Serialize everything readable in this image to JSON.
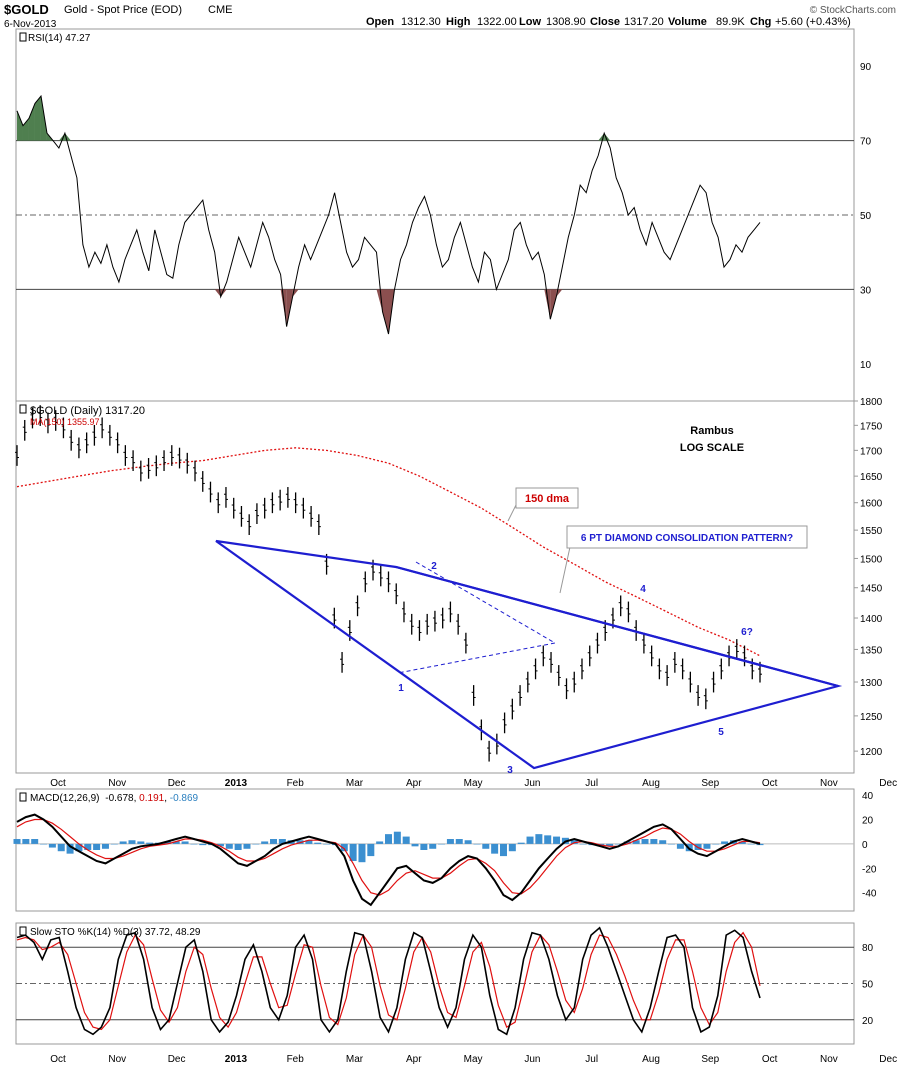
{
  "header": {
    "symbol": "$GOLD",
    "description": "Gold - Spot Price (EOD)",
    "exchange": "CME",
    "date": "6-Nov-2013",
    "open_label": "Open",
    "open": "1312.30",
    "high_label": "High",
    "high": "1322.00",
    "low_label": "Low",
    "low": "1308.90",
    "close_label": "Close",
    "close": "1317.20",
    "volume_label": "Volume",
    "volume": "89.9K",
    "chg_label": "Chg",
    "chg": "+5.60 (+0.43%)",
    "watermark": "© StockCharts.com"
  },
  "chart_data": [
    {
      "type": "line",
      "panel": "rsi",
      "legend": "RSI(14) 47.27",
      "ylim": [
        0,
        100
      ],
      "ytick_labels": [
        "90",
        "70",
        "50",
        "30",
        "10"
      ],
      "yticks": [
        90,
        70,
        50,
        30,
        10
      ],
      "overbought": 70,
      "midline": 50,
      "oversold": 30,
      "series": [
        {
          "name": "RSI(14)",
          "values": [
            78,
            74,
            76,
            80,
            82,
            72,
            70,
            68,
            72,
            66,
            60,
            42,
            36,
            40,
            37,
            42,
            36,
            32,
            38,
            42,
            46,
            40,
            35,
            46,
            40,
            34,
            33,
            42,
            48,
            50,
            52,
            54,
            46,
            40,
            28,
            32,
            38,
            44,
            40,
            36,
            42,
            48,
            44,
            38,
            34,
            20,
            28,
            36,
            42,
            38,
            42,
            46,
            50,
            56,
            48,
            40,
            36,
            38,
            44,
            42,
            40,
            24,
            18,
            30,
            38,
            42,
            48,
            52,
            55,
            50,
            42,
            36,
            38,
            44,
            48,
            42,
            36,
            32,
            40,
            38,
            30,
            34,
            38,
            46,
            48,
            42,
            38,
            40,
            34,
            22,
            28,
            36,
            44,
            50,
            58,
            56,
            62,
            66,
            72,
            68,
            60,
            56,
            50,
            52,
            46,
            42,
            48,
            44,
            40,
            38,
            42,
            46,
            50,
            54,
            58,
            56,
            48,
            44,
            36,
            38,
            42,
            40,
            44,
            46,
            48
          ]
        }
      ]
    },
    {
      "type": "line",
      "panel": "price",
      "legend": "$GOLD (Daily) 1317.20",
      "ma_legend": "MA(150) 1355.97",
      "scale": "log",
      "ylim": [
        1170,
        1800
      ],
      "ytick_labels": [
        "1800",
        "1750",
        "1700",
        "1650",
        "1600",
        "1550",
        "1500",
        "1450",
        "1400",
        "1350",
        "1300",
        "1250",
        "1200"
      ],
      "yticks": [
        1800,
        1750,
        1700,
        1650,
        1600,
        1550,
        1500,
        1450,
        1400,
        1350,
        1300,
        1250,
        1200
      ],
      "xtick_labels": [
        "Oct",
        "Nov",
        "Dec",
        "2013",
        "Feb",
        "Mar",
        "Apr",
        "May",
        "Jun",
        "Jul",
        "Aug",
        "Sep",
        "Oct",
        "Nov",
        "Dec"
      ],
      "series": [
        {
          "name": "$GOLD (Daily)",
          "values": [
            1690,
            1740,
            1765,
            1770,
            1755,
            1760,
            1745,
            1720,
            1705,
            1715,
            1730,
            1745,
            1730,
            1715,
            1690,
            1680,
            1660,
            1665,
            1670,
            1680,
            1690,
            1685,
            1675,
            1660,
            1640,
            1620,
            1600,
            1610,
            1590,
            1575,
            1560,
            1580,
            1590,
            1600,
            1605,
            1610,
            1600,
            1590,
            1575,
            1560,
            1490,
            1400,
            1330,
            1380,
            1420,
            1460,
            1480,
            1470,
            1460,
            1440,
            1410,
            1390,
            1380,
            1390,
            1395,
            1400,
            1410,
            1390,
            1360,
            1280,
            1230,
            1200,
            1210,
            1240,
            1260,
            1280,
            1300,
            1320,
            1340,
            1330,
            1310,
            1290,
            1300,
            1320,
            1340,
            1360,
            1380,
            1400,
            1420,
            1410,
            1380,
            1360,
            1340,
            1320,
            1310,
            1330,
            1320,
            1300,
            1280,
            1275,
            1300,
            1320,
            1340,
            1350,
            1340,
            1320,
            1315
          ]
        },
        {
          "name": "MA(150)",
          "values": [
            1630,
            1640,
            1650,
            1660,
            1668,
            1675,
            1680,
            1690,
            1700,
            1705,
            1700,
            1690,
            1675,
            1650,
            1620,
            1590,
            1555,
            1520,
            1490,
            1460,
            1435,
            1410,
            1385,
            1365,
            1340
          ]
        }
      ],
      "text_annotations": [
        "Rambus",
        "LOG SCALE",
        "150 dma",
        "6 PT DIAMOND CONSOLIDATION PATTERN?",
        "1",
        "2",
        "3",
        "4",
        "5",
        "6?"
      ]
    },
    {
      "type": "line",
      "panel": "macd",
      "legend_label": "MACD(12,26,9)",
      "legend_values": [
        "-0.678",
        "0.191",
        "-0.869"
      ],
      "ylim": [
        -55,
        45
      ],
      "ytick_labels": [
        "40",
        "20",
        "0",
        "-20",
        "-40"
      ],
      "yticks": [
        40,
        20,
        0,
        -20,
        -40
      ],
      "series": [
        {
          "name": "MACD",
          "values": [
            18,
            22,
            24,
            20,
            14,
            6,
            -2,
            -6,
            -10,
            -14,
            -16,
            -12,
            -8,
            -4,
            -2,
            -1,
            0,
            2,
            4,
            6,
            4,
            2,
            0,
            -4,
            -10,
            -16,
            -18,
            -14,
            -10,
            -4,
            0,
            2,
            4,
            6,
            4,
            2,
            0,
            -10,
            -30,
            -45,
            -50,
            -40,
            -30,
            -20,
            -18,
            -24,
            -30,
            -32,
            -28,
            -20,
            -14,
            -10,
            -12,
            -20,
            -30,
            -42,
            -46,
            -40,
            -30,
            -20,
            -12,
            -4,
            2,
            4,
            2,
            0,
            -2,
            -4,
            -2,
            2,
            6,
            10,
            14,
            16,
            12,
            4,
            -4,
            -8,
            -10,
            -6,
            -2,
            2,
            4,
            2,
            0
          ]
        },
        {
          "name": "Signal",
          "values": [
            14,
            18,
            20,
            20,
            17,
            12,
            6,
            0,
            -5,
            -9,
            -12,
            -12,
            -10,
            -7,
            -4,
            -2,
            -1,
            0,
            2,
            4,
            4,
            3,
            1,
            -2,
            -6,
            -11,
            -14,
            -14,
            -12,
            -8,
            -4,
            -1,
            1,
            3,
            3,
            2,
            1,
            -4,
            -16,
            -30,
            -40,
            -42,
            -38,
            -30,
            -24,
            -22,
            -25,
            -28,
            -28,
            -24,
            -18,
            -13,
            -12,
            -16,
            -22,
            -32,
            -40,
            -41,
            -36,
            -28,
            -19,
            -10,
            -3,
            1,
            2,
            1,
            -1,
            -2,
            -2,
            0,
            3,
            6,
            10,
            13,
            12,
            8,
            2,
            -3,
            -6,
            -6,
            -4,
            -1,
            2,
            2,
            1
          ]
        },
        {
          "name": "Histogram",
          "values": [
            4,
            4,
            4,
            0,
            -3,
            -6,
            -8,
            -6,
            -5,
            -5,
            -4,
            0,
            2,
            3,
            2,
            1,
            1,
            2,
            2,
            2,
            0,
            -1,
            -1,
            -2,
            -4,
            -5,
            -4,
            0,
            2,
            4,
            4,
            3,
            3,
            3,
            1,
            0,
            -1,
            -6,
            -14,
            -15,
            -10,
            2,
            8,
            10,
            6,
            -2,
            -5,
            -4,
            0,
            4,
            4,
            3,
            0,
            -4,
            -8,
            -10,
            -6,
            1,
            6,
            8,
            7,
            6,
            5,
            3,
            0,
            -1,
            -1,
            -2,
            0,
            2,
            3,
            4,
            4,
            3,
            0,
            -4,
            -6,
            -5,
            -4,
            0,
            2,
            3,
            2,
            0,
            -1
          ]
        }
      ]
    },
    {
      "type": "line",
      "panel": "sto",
      "legend": "Slow STO %K(14) %D(3) 37.72, 48.29",
      "ylim": [
        0,
        100
      ],
      "ytick_labels": [
        "80",
        "50",
        "20"
      ],
      "yticks": [
        80,
        50,
        20
      ],
      "series": [
        {
          "name": "%K(14)",
          "values": [
            88,
            90,
            84,
            70,
            86,
            88,
            60,
            30,
            12,
            8,
            14,
            30,
            70,
            90,
            92,
            70,
            30,
            12,
            20,
            50,
            80,
            86,
            60,
            20,
            10,
            18,
            40,
            70,
            82,
            60,
            30,
            20,
            40,
            80,
            90,
            70,
            20,
            10,
            20,
            60,
            92,
            90,
            60,
            22,
            10,
            30,
            70,
            92,
            88,
            60,
            30,
            14,
            30,
            70,
            90,
            80,
            40,
            12,
            8,
            30,
            70,
            92,
            90,
            70,
            40,
            20,
            30,
            70,
            90,
            96,
            80,
            60,
            40,
            20,
            10,
            30,
            60,
            88,
            90,
            80,
            30,
            10,
            14,
            40,
            90,
            94,
            88,
            60,
            38
          ]
        },
        {
          "name": "%D(3)",
          "values": [
            86,
            88,
            86,
            78,
            80,
            84,
            74,
            50,
            26,
            14,
            12,
            20,
            48,
            76,
            90,
            82,
            54,
            28,
            18,
            30,
            60,
            80,
            74,
            46,
            22,
            14,
            26,
            50,
            72,
            72,
            50,
            30,
            32,
            58,
            82,
            80,
            48,
            22,
            16,
            38,
            74,
            90,
            80,
            48,
            24,
            20,
            46,
            76,
            88,
            76,
            48,
            26,
            22,
            48,
            76,
            84,
            64,
            32,
            14,
            18,
            46,
            76,
            90,
            82,
            60,
            36,
            26,
            46,
            74,
            90,
            88,
            74,
            56,
            36,
            20,
            20,
            42,
            70,
            86,
            86,
            60,
            30,
            16,
            26,
            60,
            84,
            92,
            80,
            48
          ]
        }
      ]
    }
  ]
}
